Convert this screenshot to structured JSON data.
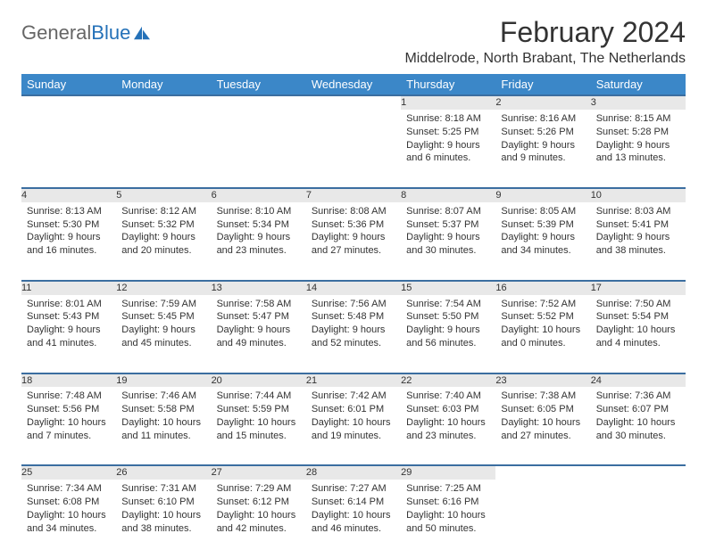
{
  "header": {
    "logo_general": "General",
    "logo_blue": "Blue",
    "month_title": "February 2024",
    "location": "Middelrode, North Brabant, The Netherlands"
  },
  "style": {
    "header_bg": "#3b87c8",
    "header_text": "#ffffff",
    "daynum_bg": "#e8e8e8",
    "row_border": "#3b6ea0",
    "text_color": "#333333",
    "body_font_size": 11,
    "header_font_size": 13,
    "month_title_font_size": 32,
    "location_font_size": 16
  },
  "days_of_week": [
    "Sunday",
    "Monday",
    "Tuesday",
    "Wednesday",
    "Thursday",
    "Friday",
    "Saturday"
  ],
  "weeks": [
    [
      null,
      null,
      null,
      null,
      {
        "n": "1",
        "sr": "Sunrise: 8:18 AM",
        "ss": "Sunset: 5:25 PM",
        "dl": "Daylight: 9 hours and 6 minutes."
      },
      {
        "n": "2",
        "sr": "Sunrise: 8:16 AM",
        "ss": "Sunset: 5:26 PM",
        "dl": "Daylight: 9 hours and 9 minutes."
      },
      {
        "n": "3",
        "sr": "Sunrise: 8:15 AM",
        "ss": "Sunset: 5:28 PM",
        "dl": "Daylight: 9 hours and 13 minutes."
      }
    ],
    [
      {
        "n": "4",
        "sr": "Sunrise: 8:13 AM",
        "ss": "Sunset: 5:30 PM",
        "dl": "Daylight: 9 hours and 16 minutes."
      },
      {
        "n": "5",
        "sr": "Sunrise: 8:12 AM",
        "ss": "Sunset: 5:32 PM",
        "dl": "Daylight: 9 hours and 20 minutes."
      },
      {
        "n": "6",
        "sr": "Sunrise: 8:10 AM",
        "ss": "Sunset: 5:34 PM",
        "dl": "Daylight: 9 hours and 23 minutes."
      },
      {
        "n": "7",
        "sr": "Sunrise: 8:08 AM",
        "ss": "Sunset: 5:36 PM",
        "dl": "Daylight: 9 hours and 27 minutes."
      },
      {
        "n": "8",
        "sr": "Sunrise: 8:07 AM",
        "ss": "Sunset: 5:37 PM",
        "dl": "Daylight: 9 hours and 30 minutes."
      },
      {
        "n": "9",
        "sr": "Sunrise: 8:05 AM",
        "ss": "Sunset: 5:39 PM",
        "dl": "Daylight: 9 hours and 34 minutes."
      },
      {
        "n": "10",
        "sr": "Sunrise: 8:03 AM",
        "ss": "Sunset: 5:41 PM",
        "dl": "Daylight: 9 hours and 38 minutes."
      }
    ],
    [
      {
        "n": "11",
        "sr": "Sunrise: 8:01 AM",
        "ss": "Sunset: 5:43 PM",
        "dl": "Daylight: 9 hours and 41 minutes."
      },
      {
        "n": "12",
        "sr": "Sunrise: 7:59 AM",
        "ss": "Sunset: 5:45 PM",
        "dl": "Daylight: 9 hours and 45 minutes."
      },
      {
        "n": "13",
        "sr": "Sunrise: 7:58 AM",
        "ss": "Sunset: 5:47 PM",
        "dl": "Daylight: 9 hours and 49 minutes."
      },
      {
        "n": "14",
        "sr": "Sunrise: 7:56 AM",
        "ss": "Sunset: 5:48 PM",
        "dl": "Daylight: 9 hours and 52 minutes."
      },
      {
        "n": "15",
        "sr": "Sunrise: 7:54 AM",
        "ss": "Sunset: 5:50 PM",
        "dl": "Daylight: 9 hours and 56 minutes."
      },
      {
        "n": "16",
        "sr": "Sunrise: 7:52 AM",
        "ss": "Sunset: 5:52 PM",
        "dl": "Daylight: 10 hours and 0 minutes."
      },
      {
        "n": "17",
        "sr": "Sunrise: 7:50 AM",
        "ss": "Sunset: 5:54 PM",
        "dl": "Daylight: 10 hours and 4 minutes."
      }
    ],
    [
      {
        "n": "18",
        "sr": "Sunrise: 7:48 AM",
        "ss": "Sunset: 5:56 PM",
        "dl": "Daylight: 10 hours and 7 minutes."
      },
      {
        "n": "19",
        "sr": "Sunrise: 7:46 AM",
        "ss": "Sunset: 5:58 PM",
        "dl": "Daylight: 10 hours and 11 minutes."
      },
      {
        "n": "20",
        "sr": "Sunrise: 7:44 AM",
        "ss": "Sunset: 5:59 PM",
        "dl": "Daylight: 10 hours and 15 minutes."
      },
      {
        "n": "21",
        "sr": "Sunrise: 7:42 AM",
        "ss": "Sunset: 6:01 PM",
        "dl": "Daylight: 10 hours and 19 minutes."
      },
      {
        "n": "22",
        "sr": "Sunrise: 7:40 AM",
        "ss": "Sunset: 6:03 PM",
        "dl": "Daylight: 10 hours and 23 minutes."
      },
      {
        "n": "23",
        "sr": "Sunrise: 7:38 AM",
        "ss": "Sunset: 6:05 PM",
        "dl": "Daylight: 10 hours and 27 minutes."
      },
      {
        "n": "24",
        "sr": "Sunrise: 7:36 AM",
        "ss": "Sunset: 6:07 PM",
        "dl": "Daylight: 10 hours and 30 minutes."
      }
    ],
    [
      {
        "n": "25",
        "sr": "Sunrise: 7:34 AM",
        "ss": "Sunset: 6:08 PM",
        "dl": "Daylight: 10 hours and 34 minutes."
      },
      {
        "n": "26",
        "sr": "Sunrise: 7:31 AM",
        "ss": "Sunset: 6:10 PM",
        "dl": "Daylight: 10 hours and 38 minutes."
      },
      {
        "n": "27",
        "sr": "Sunrise: 7:29 AM",
        "ss": "Sunset: 6:12 PM",
        "dl": "Daylight: 10 hours and 42 minutes."
      },
      {
        "n": "28",
        "sr": "Sunrise: 7:27 AM",
        "ss": "Sunset: 6:14 PM",
        "dl": "Daylight: 10 hours and 46 minutes."
      },
      {
        "n": "29",
        "sr": "Sunrise: 7:25 AM",
        "ss": "Sunset: 6:16 PM",
        "dl": "Daylight: 10 hours and 50 minutes."
      },
      null,
      null
    ]
  ]
}
